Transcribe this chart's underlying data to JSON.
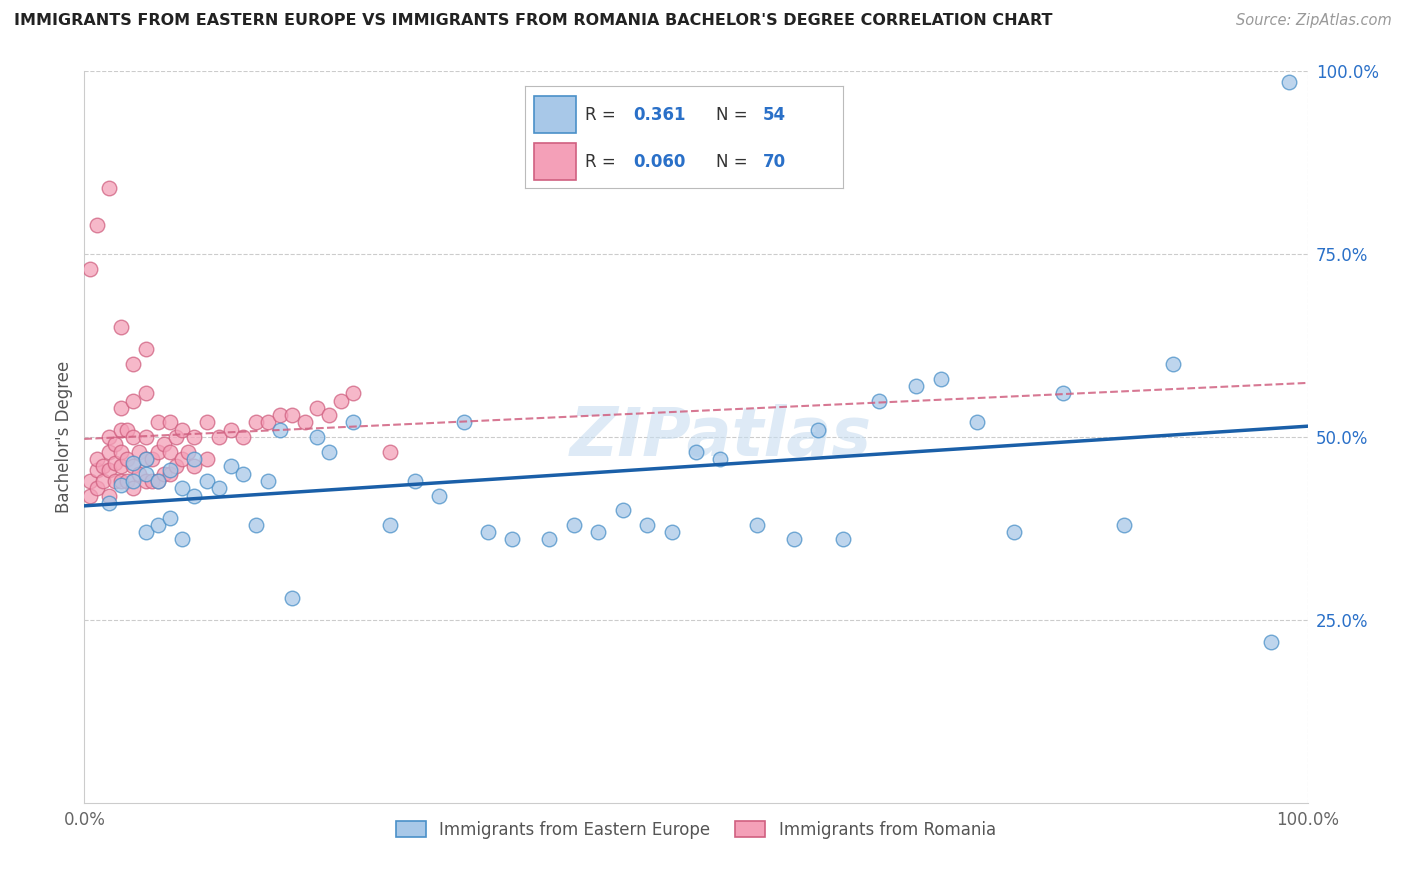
{
  "title": "IMMIGRANTS FROM EASTERN EUROPE VS IMMIGRANTS FROM ROMANIA BACHELOR'S DEGREE CORRELATION CHART",
  "source": "Source: ZipAtlas.com",
  "ylabel": "Bachelor's Degree",
  "legend1_label": "Immigrants from Eastern Europe",
  "legend2_label": "Immigrants from Romania",
  "R1": "0.361",
  "N1": "54",
  "R2": "0.060",
  "N2": "70",
  "color_blue_fill": "#a8c8e8",
  "color_blue_edge": "#4a90c8",
  "color_blue_line": "#1a5fa8",
  "color_pink_fill": "#f4a0b8",
  "color_pink_edge": "#d06080",
  "color_pink_line": "#d06080",
  "color_blue_text": "#2a70c8",
  "watermark": "ZIPatlas",
  "blue_x": [
    0.02,
    0.03,
    0.04,
    0.04,
    0.05,
    0.05,
    0.05,
    0.06,
    0.06,
    0.07,
    0.07,
    0.08,
    0.08,
    0.09,
    0.09,
    0.1,
    0.11,
    0.12,
    0.13,
    0.14,
    0.15,
    0.16,
    0.17,
    0.19,
    0.2,
    0.22,
    0.25,
    0.27,
    0.29,
    0.31,
    0.33,
    0.35,
    0.38,
    0.4,
    0.42,
    0.44,
    0.46,
    0.48,
    0.5,
    0.52,
    0.55,
    0.58,
    0.6,
    0.62,
    0.65,
    0.68,
    0.7,
    0.73,
    0.76,
    0.8,
    0.85,
    0.89,
    0.97,
    0.985
  ],
  "blue_y": [
    0.41,
    0.435,
    0.44,
    0.465,
    0.37,
    0.45,
    0.47,
    0.38,
    0.44,
    0.39,
    0.455,
    0.36,
    0.43,
    0.42,
    0.47,
    0.44,
    0.43,
    0.46,
    0.45,
    0.38,
    0.44,
    0.51,
    0.28,
    0.5,
    0.48,
    0.52,
    0.38,
    0.44,
    0.42,
    0.52,
    0.37,
    0.36,
    0.36,
    0.38,
    0.37,
    0.4,
    0.38,
    0.37,
    0.48,
    0.47,
    0.38,
    0.36,
    0.51,
    0.36,
    0.55,
    0.57,
    0.58,
    0.52,
    0.37,
    0.56,
    0.38,
    0.6,
    0.22,
    0.985
  ],
  "pink_x": [
    0.005,
    0.005,
    0.01,
    0.01,
    0.01,
    0.015,
    0.015,
    0.02,
    0.02,
    0.02,
    0.02,
    0.025,
    0.025,
    0.025,
    0.03,
    0.03,
    0.03,
    0.03,
    0.03,
    0.035,
    0.035,
    0.035,
    0.04,
    0.04,
    0.04,
    0.04,
    0.045,
    0.045,
    0.05,
    0.05,
    0.05,
    0.05,
    0.055,
    0.055,
    0.06,
    0.06,
    0.06,
    0.065,
    0.065,
    0.07,
    0.07,
    0.07,
    0.075,
    0.075,
    0.08,
    0.08,
    0.085,
    0.09,
    0.09,
    0.1,
    0.1,
    0.11,
    0.12,
    0.13,
    0.14,
    0.15,
    0.16,
    0.17,
    0.18,
    0.19,
    0.2,
    0.21,
    0.22,
    0.005,
    0.01,
    0.02,
    0.03,
    0.04,
    0.05,
    0.25
  ],
  "pink_y": [
    0.42,
    0.44,
    0.43,
    0.455,
    0.47,
    0.44,
    0.46,
    0.42,
    0.455,
    0.48,
    0.5,
    0.44,
    0.465,
    0.49,
    0.44,
    0.46,
    0.48,
    0.51,
    0.54,
    0.44,
    0.47,
    0.51,
    0.43,
    0.46,
    0.5,
    0.55,
    0.45,
    0.48,
    0.44,
    0.47,
    0.5,
    0.56,
    0.44,
    0.47,
    0.44,
    0.48,
    0.52,
    0.45,
    0.49,
    0.45,
    0.48,
    0.52,
    0.46,
    0.5,
    0.47,
    0.51,
    0.48,
    0.46,
    0.5,
    0.47,
    0.52,
    0.5,
    0.51,
    0.5,
    0.52,
    0.52,
    0.53,
    0.53,
    0.52,
    0.54,
    0.53,
    0.55,
    0.56,
    0.73,
    0.79,
    0.84,
    0.65,
    0.6,
    0.62,
    0.48
  ]
}
